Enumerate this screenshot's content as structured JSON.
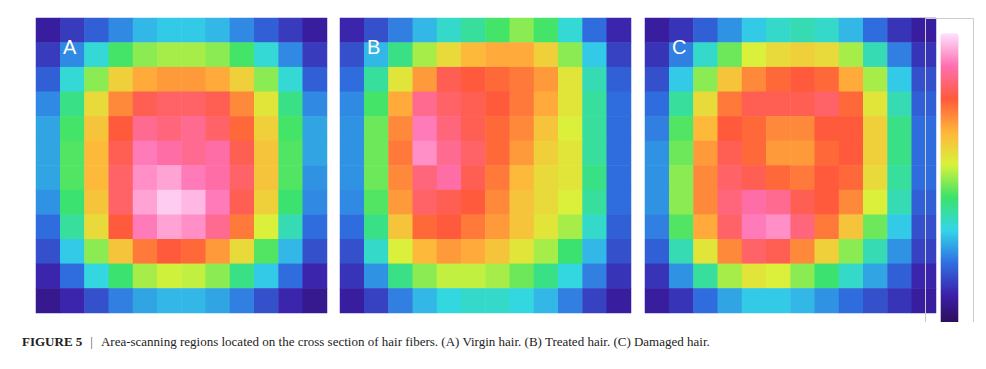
{
  "chart_data": [
    {
      "type": "heatmap",
      "title": "A",
      "tick_labels": false,
      "colorbar": {
        "range": [
          0,
          100
        ]
      },
      "cells": [
        [
          10,
          15,
          20,
          25,
          30,
          32,
          32,
          30,
          25,
          20,
          15,
          10
        ],
        [
          15,
          25,
          35,
          45,
          50,
          52,
          52,
          50,
          45,
          35,
          25,
          15
        ],
        [
          20,
          35,
          50,
          62,
          68,
          70,
          70,
          68,
          62,
          50,
          35,
          20
        ],
        [
          25,
          42,
          60,
          72,
          80,
          82,
          82,
          80,
          72,
          58,
          42,
          25
        ],
        [
          28,
          45,
          64,
          78,
          86,
          84,
          86,
          82,
          76,
          62,
          45,
          28
        ],
        [
          28,
          46,
          66,
          80,
          90,
          88,
          86,
          88,
          80,
          64,
          46,
          28
        ],
        [
          28,
          46,
          66,
          82,
          92,
          94,
          90,
          88,
          82,
          64,
          46,
          26
        ],
        [
          26,
          44,
          64,
          82,
          94,
          98,
          96,
          90,
          80,
          62,
          44,
          25
        ],
        [
          22,
          40,
          60,
          78,
          90,
          94,
          92,
          86,
          74,
          56,
          38,
          22
        ],
        [
          18,
          32,
          50,
          64,
          74,
          78,
          76,
          70,
          60,
          46,
          30,
          18
        ],
        [
          12,
          22,
          34,
          44,
          52,
          55,
          54,
          50,
          42,
          32,
          22,
          12
        ],
        [
          8,
          12,
          18,
          24,
          28,
          30,
          30,
          28,
          24,
          18,
          12,
          8
        ]
      ]
    },
    {
      "type": "heatmap",
      "title": "B",
      "tick_labels": false,
      "colorbar": {
        "range": [
          0,
          100
        ]
      },
      "cells": [
        [
          12,
          18,
          24,
          30,
          36,
          40,
          45,
          50,
          45,
          35,
          22,
          12
        ],
        [
          18,
          30,
          42,
          52,
          60,
          66,
          68,
          68,
          62,
          50,
          32,
          16
        ],
        [
          22,
          40,
          58,
          70,
          80,
          78,
          76,
          74,
          70,
          58,
          38,
          20
        ],
        [
          25,
          45,
          68,
          86,
          82,
          80,
          78,
          74,
          68,
          58,
          40,
          22
        ],
        [
          26,
          48,
          72,
          90,
          84,
          80,
          76,
          72,
          64,
          56,
          40,
          22
        ],
        [
          26,
          48,
          74,
          92,
          86,
          82,
          76,
          70,
          62,
          58,
          40,
          22
        ],
        [
          26,
          48,
          72,
          84,
          88,
          80,
          74,
          66,
          60,
          58,
          42,
          22
        ],
        [
          25,
          46,
          70,
          82,
          80,
          78,
          72,
          64,
          60,
          56,
          40,
          22
        ],
        [
          22,
          42,
          64,
          76,
          78,
          74,
          70,
          64,
          58,
          52,
          36,
          20
        ],
        [
          18,
          36,
          56,
          66,
          70,
          68,
          64,
          58,
          52,
          44,
          30,
          18
        ],
        [
          14,
          26,
          42,
          50,
          54,
          54,
          52,
          48,
          42,
          34,
          24,
          14
        ],
        [
          10,
          16,
          24,
          30,
          34,
          36,
          36,
          34,
          30,
          24,
          16,
          10
        ]
      ]
    },
    {
      "type": "heatmap",
      "title": "C",
      "tick_labels": false,
      "colorbar": {
        "range": [
          0,
          100
        ]
      },
      "cells": [
        [
          10,
          14,
          20,
          26,
          32,
          36,
          38,
          36,
          30,
          22,
          14,
          10
        ],
        [
          14,
          24,
          36,
          48,
          56,
          60,
          62,
          60,
          52,
          38,
          24,
          14
        ],
        [
          18,
          32,
          50,
          64,
          72,
          76,
          78,
          76,
          68,
          52,
          32,
          18
        ],
        [
          22,
          40,
          60,
          74,
          80,
          80,
          80,
          82,
          76,
          58,
          38,
          20
        ],
        [
          24,
          46,
          66,
          78,
          76,
          72,
          72,
          78,
          78,
          62,
          42,
          22
        ],
        [
          26,
          48,
          70,
          80,
          76,
          70,
          70,
          76,
          78,
          62,
          42,
          22
        ],
        [
          26,
          50,
          72,
          82,
          80,
          76,
          74,
          78,
          76,
          60,
          40,
          22
        ],
        [
          26,
          50,
          72,
          84,
          88,
          86,
          80,
          78,
          72,
          56,
          38,
          20
        ],
        [
          24,
          46,
          68,
          82,
          90,
          92,
          84,
          74,
          64,
          48,
          32,
          18
        ],
        [
          20,
          38,
          58,
          72,
          82,
          80,
          72,
          62,
          50,
          38,
          26,
          16
        ],
        [
          14,
          26,
          40,
          52,
          58,
          56,
          50,
          44,
          36,
          28,
          20,
          12
        ],
        [
          10,
          14,
          22,
          28,
          32,
          32,
          30,
          26,
          22,
          18,
          14,
          10
        ]
      ]
    }
  ],
  "caption": {
    "label": "FIGURE 5",
    "separator": "|",
    "text": "Area-scanning regions located on the cross section of hair fibers. (A) Virgin hair. (B) Treated hair. (C) Damaged hair."
  }
}
